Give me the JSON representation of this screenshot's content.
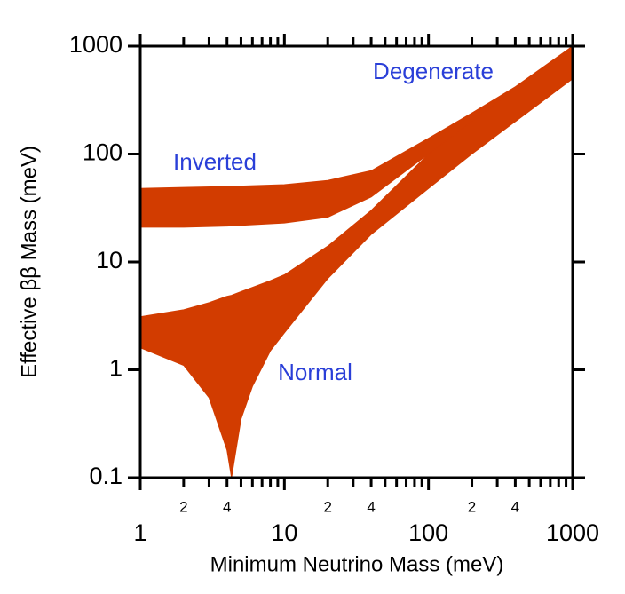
{
  "chart_data": {
    "type": "band",
    "x_label": "Minimum Neutrino Mass (meV)",
    "y_label": "Effective ββ Mass (meV)",
    "log_x": true,
    "log_y": true,
    "xlim": [
      1,
      1000
    ],
    "ylim": [
      0.1,
      1000
    ],
    "xticks": [
      1,
      10,
      100,
      1000,
      {
        "value": 2,
        "label": "2"
      },
      {
        "value": 4,
        "label": "4"
      },
      {
        "value": 20,
        "label": "2"
      },
      {
        "value": 40,
        "label": "4"
      },
      {
        "value": 200,
        "label": "2"
      },
      {
        "value": 400,
        "label": "4"
      }
    ],
    "xminorticks": [
      3,
      5,
      6,
      7,
      8,
      9,
      30,
      50,
      60,
      70,
      80,
      90,
      300,
      500,
      600,
      700,
      800,
      900
    ],
    "yticks": [
      0.1,
      1,
      10,
      100,
      1000
    ],
    "series": [
      {
        "name": "Inverted",
        "color": "#d23c00",
        "x": [
          1,
          2,
          4,
          10,
          20,
          40,
          100,
          200,
          400,
          1000
        ],
        "upper": [
          48,
          49,
          50,
          52,
          57,
          70,
          140,
          240,
          420,
          1000
        ],
        "lower": [
          21,
          21,
          21.5,
          23,
          26,
          40,
          100,
          200,
          200,
          500
        ]
      },
      {
        "name": "Normal",
        "color": "#d23c00",
        "x": [
          1,
          2,
          3,
          4,
          4.3,
          5,
          6,
          8,
          10,
          20,
          40,
          100,
          200,
          400,
          1000
        ],
        "upper": [
          3.1,
          3.6,
          4.2,
          4.8,
          4.9,
          5.3,
          5.8,
          6.7,
          7.6,
          14,
          30,
          100,
          200,
          400,
          1000
        ],
        "lower": [
          1.6,
          1.1,
          0.55,
          0.18,
          0.1,
          0.35,
          0.7,
          1.5,
          2.2,
          7,
          18,
          48,
          100,
          200,
          500
        ]
      }
    ],
    "annotations": [
      "Degenerate"
    ]
  }
}
